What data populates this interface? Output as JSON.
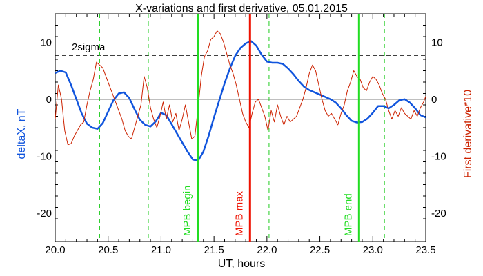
{
  "chart_data": {
    "type": "line",
    "title": "X-variations and first derivative, 05.01.2015",
    "xlabel": "UT, hours",
    "ylabel_left": "deltaX, nT",
    "ylabel_right": "First derivative*10",
    "xlim": [
      20.0,
      23.5
    ],
    "ylim": [
      -25,
      15
    ],
    "xticks": [
      "20.0",
      "20.5",
      "21.0",
      "21.5",
      "22.0",
      "22.5",
      "23.0",
      "23.5"
    ],
    "xtick_values": [
      20.0,
      20.5,
      21.0,
      21.5,
      22.0,
      22.5,
      23.0,
      23.5
    ],
    "yticks": [
      "-20",
      "-10",
      "0",
      "10"
    ],
    "ytick_values": [
      -20,
      -10,
      0,
      10
    ],
    "colors": {
      "deltaX": "#1155dd",
      "derivative": "#cc2200",
      "mpb": "#22dd22",
      "mpb_max": "#ee1100",
      "dashed_green": "#22cc22",
      "axes": "#000000"
    },
    "threshold": {
      "label": "2sigma",
      "value": 7.7
    },
    "zero_line": 0,
    "vertical_markers": [
      {
        "label": "MPB begin",
        "x": 21.35,
        "style": "solid",
        "color": "#22dd22"
      },
      {
        "label": "MPB max",
        "x": 21.84,
        "style": "solid",
        "color": "#ee1100"
      },
      {
        "label": "MPB end",
        "x": 22.87,
        "style": "solid",
        "color": "#22dd22"
      }
    ],
    "dashed_markers": [
      20.42,
      20.88,
      22.02,
      23.11
    ],
    "series": [
      {
        "key": "deltaX",
        "x": [
          20.0,
          20.05,
          20.1,
          20.15,
          20.2,
          20.25,
          20.3,
          20.35,
          20.4,
          20.45,
          20.5,
          20.55,
          20.6,
          20.65,
          20.7,
          20.75,
          20.8,
          20.85,
          20.9,
          20.95,
          21.0,
          21.05,
          21.1,
          21.15,
          21.2,
          21.25,
          21.3,
          21.35,
          21.4,
          21.45,
          21.5,
          21.55,
          21.6,
          21.65,
          21.7,
          21.75,
          21.8,
          21.85,
          21.9,
          21.95,
          22.0,
          22.05,
          22.1,
          22.15,
          22.2,
          22.25,
          22.3,
          22.35,
          22.4,
          22.45,
          22.5,
          22.55,
          22.6,
          22.65,
          22.7,
          22.75,
          22.8,
          22.85,
          22.9,
          22.95,
          23.0,
          23.05,
          23.1,
          23.15,
          23.2,
          23.25,
          23.3,
          23.35,
          23.4,
          23.45,
          23.5
        ],
        "y": [
          4.6,
          5.0,
          4.7,
          2.5,
          0.0,
          -2.5,
          -4.3,
          -5.0,
          -5.2,
          -4.2,
          -2.2,
          -0.2,
          1.0,
          1.2,
          0.2,
          -1.8,
          -3.6,
          -4.5,
          -4.8,
          -3.9,
          -2.4,
          -2.8,
          -4.4,
          -6.0,
          -7.6,
          -9.2,
          -10.6,
          -10.8,
          -9.2,
          -6.4,
          -3.2,
          -0.2,
          2.8,
          5.4,
          7.6,
          9.0,
          9.8,
          10.2,
          9.4,
          7.8,
          6.6,
          6.4,
          6.4,
          6.2,
          5.4,
          4.4,
          3.2,
          2.2,
          1.6,
          1.2,
          0.8,
          0.4,
          0.0,
          -0.6,
          -1.6,
          -2.8,
          -3.8,
          -4.1,
          -4.0,
          -3.4,
          -2.4,
          -1.2,
          -1.2,
          -1.6,
          -1.0,
          -0.2,
          0.0,
          -0.6,
          -1.6,
          -2.8,
          -3.2
        ]
      },
      {
        "key": "derivative",
        "x": [
          20.0,
          20.03,
          20.06,
          20.09,
          20.12,
          20.15,
          20.18,
          20.21,
          20.24,
          20.27,
          20.3,
          20.33,
          20.36,
          20.39,
          20.42,
          20.45,
          20.48,
          20.51,
          20.54,
          20.57,
          20.6,
          20.63,
          20.66,
          20.69,
          20.72,
          20.75,
          20.78,
          20.81,
          20.84,
          20.87,
          20.9,
          20.93,
          20.96,
          20.99,
          21.02,
          21.05,
          21.08,
          21.11,
          21.14,
          21.17,
          21.2,
          21.23,
          21.26,
          21.29,
          21.32,
          21.35,
          21.38,
          21.41,
          21.44,
          21.47,
          21.5,
          21.53,
          21.56,
          21.59,
          21.62,
          21.65,
          21.68,
          21.71,
          21.74,
          21.77,
          21.8,
          21.83,
          21.86,
          21.89,
          21.92,
          21.95,
          21.98,
          22.01,
          22.04,
          22.07,
          22.1,
          22.13,
          22.16,
          22.19,
          22.22,
          22.25,
          22.28,
          22.31,
          22.34,
          22.37,
          22.4,
          22.43,
          22.46,
          22.49,
          22.52,
          22.55,
          22.58,
          22.61,
          22.64,
          22.67,
          22.7,
          22.73,
          22.76,
          22.79,
          22.82,
          22.85,
          22.88,
          22.91,
          22.94,
          22.97,
          23.0,
          23.03,
          23.06,
          23.09,
          23.12,
          23.15,
          23.18,
          23.21,
          23.24,
          23.27,
          23.3,
          23.33,
          23.36,
          23.39,
          23.42,
          23.45,
          23.48,
          23.5
        ],
        "y": [
          -3.5,
          2.5,
          0.0,
          -5.5,
          -8.0,
          -7.8,
          -6.5,
          -5.5,
          -4.5,
          -4.0,
          -1.0,
          1.5,
          3.5,
          6.5,
          6.0,
          5.5,
          4.0,
          2.5,
          1.0,
          -0.5,
          -2.0,
          -3.5,
          -5.5,
          -6.5,
          -7.0,
          -5.0,
          -3.0,
          -1.0,
          4.0,
          2.0,
          -1.5,
          -3.5,
          -5.0,
          -3.0,
          -0.5,
          -3.5,
          -1.0,
          -4.0,
          -2.5,
          -5.5,
          -3.5,
          -1.0,
          -4.0,
          -7.0,
          -6.5,
          -1.5,
          4.0,
          7.5,
          8.5,
          10.5,
          11.0,
          12.0,
          11.5,
          10.0,
          8.0,
          6.0,
          4.5,
          2.5,
          0.0,
          -2.5,
          -4.0,
          -5.0,
          -2.5,
          -0.5,
          0.0,
          -1.5,
          -3.0,
          -5.5,
          -2.0,
          -4.0,
          -1.0,
          -3.0,
          -4.5,
          -3.0,
          -4.0,
          -3.5,
          -3.0,
          -1.5,
          0.0,
          2.0,
          4.5,
          6.0,
          5.0,
          2.5,
          0.0,
          -2.0,
          -3.0,
          -2.5,
          -3.5,
          -4.5,
          -2.5,
          -1.0,
          1.5,
          3.0,
          5.0,
          4.0,
          3.5,
          2.0,
          1.5,
          3.0,
          4.0,
          3.5,
          2.5,
          1.0,
          0.0,
          -2.0,
          -3.5,
          -2.0,
          -3.0,
          -1.5,
          -2.5,
          -3.0,
          -3.5,
          -2.0,
          -3.0,
          -1.5,
          -0.5,
          0.5
        ]
      }
    ]
  }
}
